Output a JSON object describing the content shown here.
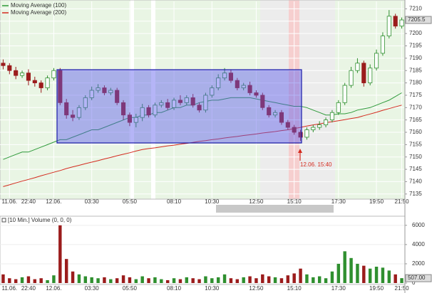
{
  "chart_data": [
    {
      "type": "candlestick",
      "categories": [
        null,
        "11.06.",
        null,
        null,
        "22:40",
        null,
        null,
        null,
        "12.06.",
        null,
        null,
        null,
        null,
        null,
        "03:30",
        null,
        null,
        null,
        null,
        null,
        "05:50",
        null,
        null,
        null,
        null,
        null,
        null,
        "08:10",
        null,
        null,
        null,
        null,
        null,
        "10:30",
        null,
        null,
        null,
        null,
        null,
        null,
        "12:50",
        null,
        null,
        null,
        null,
        null,
        "15:10",
        null,
        null,
        null,
        null,
        null,
        null,
        "17:30",
        null,
        null,
        null,
        null,
        null,
        "19:50",
        null,
        null,
        null,
        "21:50"
      ],
      "open": [
        7188,
        7187,
        7185,
        7183,
        7184,
        7181,
        7180,
        7178,
        7182,
        7185,
        7172,
        7167,
        7166,
        7170,
        7174,
        7177,
        7178,
        7176,
        7177,
        7172,
        7167,
        7164,
        7166,
        7170,
        7167,
        7171,
        7172,
        7170,
        7173,
        7172,
        7174,
        7171,
        7169,
        7175,
        7178,
        7182,
        7184,
        7181,
        7178,
        7179,
        7176,
        7175,
        7170,
        7167,
        7168,
        7164,
        7162,
        7160,
        7158,
        7161,
        7162,
        7163,
        7165,
        7168,
        7172,
        7179,
        7185,
        7188,
        7180,
        7186,
        7192,
        7199,
        7207,
        7203
      ],
      "high": [
        7189.5,
        7188,
        7186.5,
        7185,
        7185.5,
        7182.5,
        7181,
        7183,
        7186,
        7186,
        7173.5,
        7169,
        7171,
        7175,
        7178.5,
        7179.5,
        7179,
        7178,
        7178,
        7173,
        7168,
        7167.5,
        7171.5,
        7171,
        7172,
        7173,
        7173.5,
        7174,
        7175,
        7175,
        7175.5,
        7172,
        7176,
        7179,
        7183.5,
        7186,
        7185.5,
        7182,
        7180,
        7180.5,
        7177,
        7176,
        7171,
        7169,
        7169,
        7165,
        7163,
        7161,
        7162,
        7163,
        7164.5,
        7166,
        7169,
        7173,
        7180,
        7186.5,
        7190,
        7189,
        7187.5,
        7193.5,
        7200.5,
        7209.5,
        7208,
        7206.5
      ],
      "low": [
        7185.5,
        7183.5,
        7181.5,
        7182,
        7179,
        7178.5,
        7176,
        7177,
        7181,
        7171,
        7165.5,
        7164.5,
        7165,
        7169,
        7173,
        7176,
        7175,
        7175,
        7171,
        7165,
        7162.5,
        7162,
        7164.5,
        7166,
        7166,
        7170,
        7169,
        7169,
        7171,
        7171,
        7170,
        7168,
        7168,
        7174,
        7177,
        7181,
        7180,
        7177,
        7177,
        7175,
        7174,
        7169,
        7166,
        7166,
        7163,
        7161,
        7159,
        7156.5,
        7157,
        7160,
        7161,
        7162,
        7164,
        7167,
        7171,
        7178,
        7184,
        7178.5,
        7179,
        7185,
        7191,
        7198,
        7202,
        7202
      ],
      "close": [
        7187,
        7185,
        7183,
        7184,
        7181,
        7180,
        7178,
        7182,
        7185,
        7172,
        7167,
        7166,
        7170,
        7174,
        7177,
        7178,
        7176,
        7177,
        7172,
        7167,
        7164,
        7166,
        7170,
        7167,
        7171,
        7172,
        7170,
        7173,
        7172,
        7174,
        7171,
        7169,
        7175,
        7178,
        7182,
        7184,
        7181,
        7178,
        7179,
        7176,
        7175,
        7170,
        7167,
        7168,
        7164,
        7162,
        7160,
        7158,
        7161,
        7162,
        7163,
        7165,
        7168,
        7172,
        7179,
        7185,
        7188,
        7180,
        7186,
        7192,
        7199,
        7207,
        7203,
        7205.5
      ],
      "up_color": "#2f8f2f",
      "down_color": "#9b1c1c",
      "series": [
        {
          "name": "Moving Average (100)",
          "color": "#2e9a3a",
          "values": [
            7149,
            7150,
            7151,
            7152,
            7152,
            7153,
            7154,
            7155,
            7156,
            7157,
            7157,
            7158,
            7159,
            7160,
            7161,
            7161,
            7162,
            7163,
            7164,
            7165,
            7166,
            7166,
            7167,
            7167,
            7168,
            7168,
            7169,
            7170,
            7170,
            7171,
            7171,
            7172,
            7172.5,
            7173,
            7173,
            7173.5,
            7174,
            7174,
            7174,
            7174,
            7173.5,
            7173,
            7172.5,
            7172,
            7171.5,
            7171,
            7170.5,
            7170.5,
            7170,
            7169,
            7168,
            7167,
            7167,
            7167.5,
            7167.5,
            7168,
            7169,
            7169.5,
            7170,
            7171,
            7172,
            7173,
            7174.5,
            7176
          ]
        },
        {
          "name": "Moving Average (200)",
          "color": "#d42a1e",
          "values": [
            7138,
            7138.7,
            7139.5,
            7140.2,
            7140.9,
            7141.6,
            7142.4,
            7143.1,
            7143.8,
            7144.5,
            7145.3,
            7146,
            7146.6,
            7147.3,
            7147.9,
            7148.5,
            7149.2,
            7149.8,
            7150.5,
            7151.1,
            7151.7,
            7152.4,
            7153,
            7153.4,
            7153.7,
            7154.1,
            7154.5,
            7154.8,
            7155.2,
            7155.5,
            7155.9,
            7156.3,
            7156.6,
            7157,
            7157.3,
            7157.7,
            7158,
            7158.3,
            7158.7,
            7159,
            7159.3,
            7159.7,
            7160,
            7160.3,
            7160.7,
            7161,
            7161.5,
            7162,
            7162.5,
            7163,
            7163.4,
            7163.9,
            7164.3,
            7164.7,
            7165.1,
            7165.6,
            7166,
            7166.7,
            7167.4,
            7168.1,
            7168.9,
            7169.6,
            7170.3,
            7171
          ]
        }
      ],
      "annotation": "12.06. 15:40",
      "ylim": [
        7133.5,
        7213
      ],
      "yticks": [
        7135,
        7140,
        7145,
        7150,
        7155,
        7160,
        7165,
        7170,
        7175,
        7180,
        7185,
        7190,
        7195,
        7200,
        7205,
        7210
      ],
      "grid": true
    },
    {
      "type": "bar",
      "title": "[10 Min.] Volume (0, 0, 0)",
      "categories": [
        null,
        "11.06.",
        null,
        null,
        "22:40",
        null,
        null,
        null,
        "12.06.",
        null,
        null,
        null,
        null,
        null,
        "03:30",
        null,
        null,
        null,
        null,
        null,
        "05:50",
        null,
        null,
        null,
        null,
        null,
        null,
        "08:10",
        null,
        null,
        null,
        null,
        null,
        "10:30",
        null,
        null,
        null,
        null,
        null,
        null,
        "12:50",
        null,
        null,
        null,
        null,
        null,
        "15:10",
        null,
        null,
        null,
        null,
        null,
        null,
        "17:30",
        null,
        null,
        null,
        null,
        null,
        "19:50",
        null,
        null,
        null,
        "21:50"
      ],
      "values": [
        900,
        500,
        400,
        600,
        700,
        400,
        500,
        300,
        800,
        6000,
        2500,
        1200,
        900,
        700,
        600,
        500,
        600,
        400,
        500,
        800,
        600,
        400,
        700,
        500,
        600,
        400,
        300,
        500,
        400,
        600,
        500,
        400,
        700,
        500,
        600,
        900,
        500,
        400,
        600,
        700,
        500,
        900,
        700,
        600,
        500,
        800,
        1000,
        1500,
        900,
        600,
        700,
        500,
        1200,
        2000,
        3300,
        2600,
        2000,
        1800,
        1500,
        1700,
        1600,
        1300,
        900,
        507
      ],
      "last_value_label": "507.00",
      "ylim": [
        0,
        6800
      ],
      "yticks": [
        0,
        2000,
        4000,
        6000
      ],
      "grid": true
    }
  ]
}
